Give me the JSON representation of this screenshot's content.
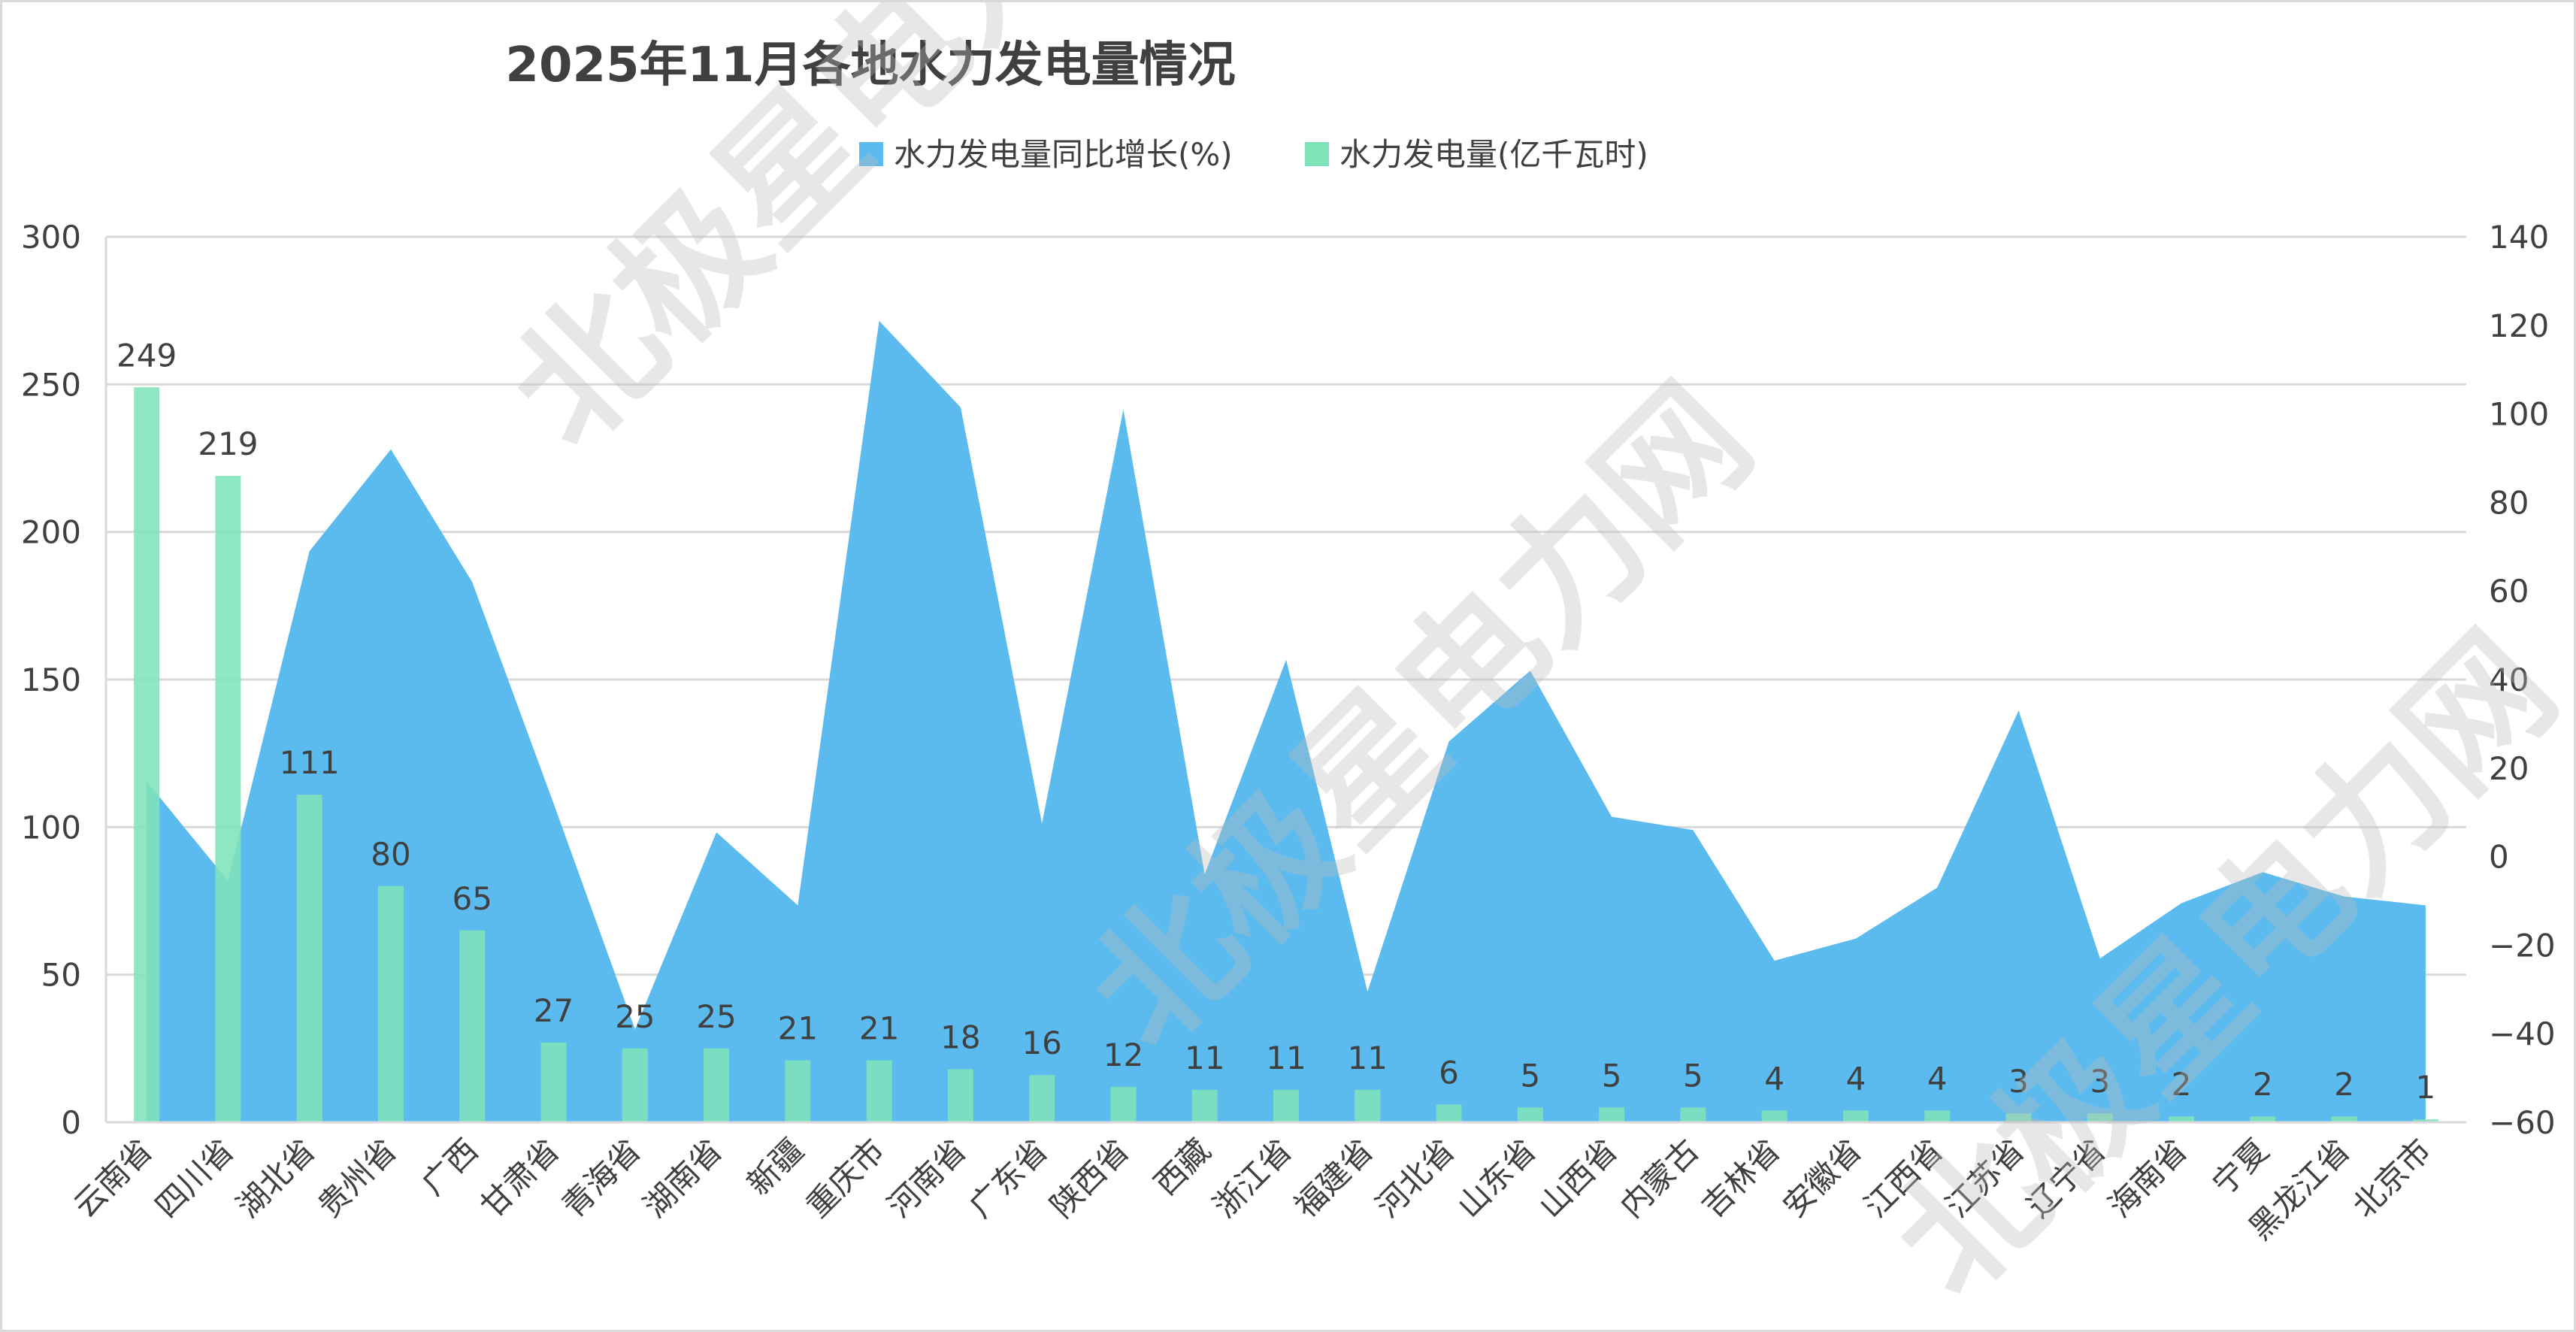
{
  "chart_data": {
    "type": "bar+area",
    "title": "2025年11月各地水力发电量情况",
    "legend_position": "top",
    "categories": [
      "云南省",
      "四川省",
      "湖北省",
      "贵州省",
      "广西",
      "甘肃省",
      "青海省",
      "湖南省",
      "新疆",
      "重庆市",
      "河南省",
      "广东省",
      "陕西省",
      "西藏",
      "浙江省",
      "福建省",
      "河北省",
      "山东省",
      "山西省",
      "内蒙古",
      "吉林省",
      "安徽省",
      "江西省",
      "江苏省",
      "辽宁省",
      "海南省",
      "宁夏",
      "黑龙江省",
      "北京市"
    ],
    "series": [
      {
        "name": "水力发电量同比增长(%)",
        "type": "area",
        "axis": "right",
        "color": "#5BBBEE",
        "values": [
          17,
          -5.5,
          69,
          92,
          62,
          12,
          -39,
          5.5,
          -11,
          121,
          101.5,
          7.5,
          101,
          -4,
          44.5,
          -30.5,
          26,
          42,
          9,
          6,
          -23.5,
          -18.5,
          -7,
          33,
          -23,
          -10.5,
          -3.5,
          -9,
          -11
        ]
      },
      {
        "name": "水力发电量(亿千瓦时)",
        "type": "bar",
        "axis": "left",
        "color": "#7FE3BA",
        "values": [
          249,
          219,
          111,
          80,
          65,
          27,
          25,
          25,
          21,
          21,
          18,
          16,
          12,
          11,
          11,
          11,
          6,
          5,
          5,
          5,
          4,
          4,
          4,
          3,
          3,
          2,
          2,
          2,
          1
        ],
        "data_labels": [
          "249",
          "219",
          "111",
          "80",
          "65",
          "27",
          "25",
          "25",
          "21",
          "21",
          "18",
          "16",
          "12",
          "11",
          "11",
          "11",
          "6",
          "5",
          "5",
          "5",
          "4",
          "4",
          "4",
          "3",
          "3",
          "2",
          "2",
          "2",
          "1"
        ]
      }
    ],
    "y_left": {
      "range": [
        0,
        300
      ],
      "ticks": [
        "0",
        "50",
        "100",
        "150",
        "200",
        "250",
        "300"
      ]
    },
    "y_right": {
      "range": [
        -60,
        140
      ],
      "ticks": [
        "-60",
        "-40",
        "-20",
        "0",
        "20",
        "40",
        "60",
        "80",
        "100",
        "120",
        "140"
      ]
    },
    "grid": true
  },
  "watermark": "北极星电力网"
}
